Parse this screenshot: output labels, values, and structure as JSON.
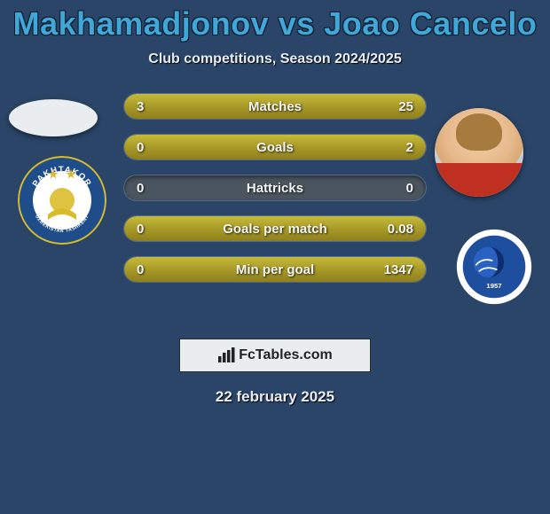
{
  "title_left": "Makhamadjonov",
  "title_vs": "vs",
  "title_right": "Joao Cancelo",
  "subtitle": "Club competitions, Season 2024/2025",
  "bars": [
    {
      "label": "Matches",
      "left": "3",
      "right": "25",
      "left_pct": 10.7,
      "right_pct": 89.3
    },
    {
      "label": "Goals",
      "left": "0",
      "right": "2",
      "left_pct": 0,
      "right_pct": 100
    },
    {
      "label": "Hattricks",
      "left": "0",
      "right": "0",
      "left_pct": 0,
      "right_pct": 0
    },
    {
      "label": "Goals per match",
      "left": "0",
      "right": "0.08",
      "left_pct": 0,
      "right_pct": 100
    },
    {
      "label": "Min per goal",
      "left": "0",
      "right": "1347",
      "left_pct": 0,
      "right_pct": 100
    }
  ],
  "colors": {
    "background": "#2a4568",
    "title": "#3fa8d8",
    "bar_fill_top": "#c5bb3a",
    "bar_fill_mid": "#a89a28",
    "bar_fill_bot": "#8f7f1e",
    "bar_empty": "#4a5560",
    "text": "#f5f5f5"
  },
  "footer_brand": "FcTables.com",
  "footer_date": "22 february 2025",
  "left_club": {
    "name": "Pakhtakor",
    "sub": "UZBEKISTAN TASHKENT",
    "ring": "#1e4d8a",
    "inner": "#ffffff",
    "accent": "#d9bc2b"
  },
  "right_club": {
    "name": "Al Hilal",
    "ring": "#ffffff",
    "inner": "#1e4e9e",
    "year": "1957"
  }
}
